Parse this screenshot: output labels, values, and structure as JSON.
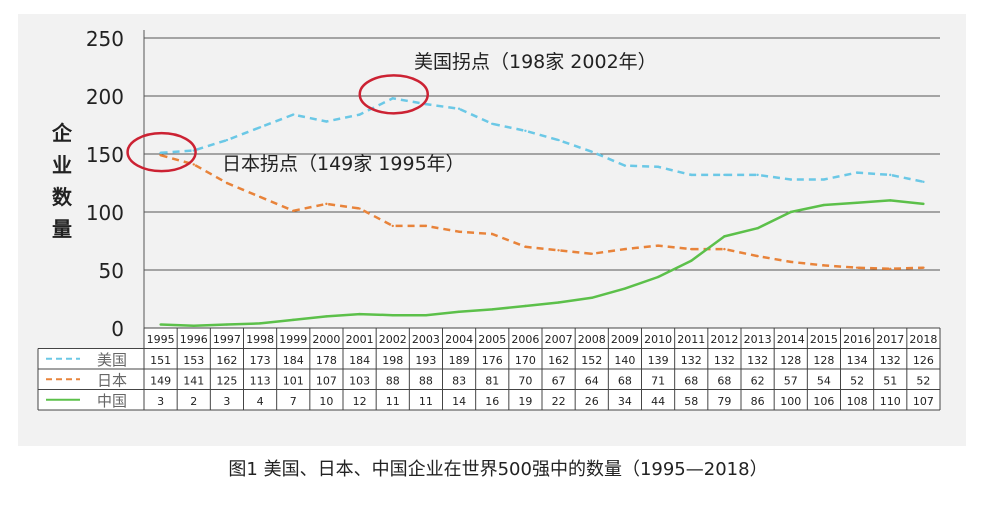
{
  "caption": "图1 美国、日本、中国企业在世界500强中的数量（1995—2018）",
  "chart_data": {
    "type": "line",
    "ylabel": "企业数量",
    "ylim": [
      0,
      250
    ],
    "yticks": [
      0,
      50,
      100,
      150,
      200,
      250
    ],
    "grid": true,
    "x": [
      "1995",
      "1996",
      "1997",
      "1998",
      "1999",
      "2000",
      "2001",
      "2002",
      "2003",
      "2004",
      "2005",
      "2006",
      "2007",
      "2008",
      "2009",
      "2010",
      "2011",
      "2012",
      "2013",
      "2014",
      "2015",
      "2016",
      "2017",
      "2018"
    ],
    "series": [
      {
        "name": "美国",
        "color": "#6bc8e6",
        "dash": "dashed",
        "values": [
          151,
          153,
          162,
          173,
          184,
          178,
          184,
          198,
          193,
          189,
          176,
          170,
          162,
          152,
          140,
          139,
          132,
          132,
          132,
          128,
          128,
          134,
          132,
          126
        ]
      },
      {
        "name": "日本",
        "color": "#e8833a",
        "dash": "dashed",
        "values": [
          149,
          141,
          125,
          113,
          101,
          107,
          103,
          88,
          88,
          83,
          81,
          70,
          67,
          64,
          68,
          71,
          68,
          68,
          62,
          57,
          54,
          52,
          51,
          52
        ]
      },
      {
        "name": "中国",
        "color": "#5cc04a",
        "dash": "solid",
        "values": [
          3,
          2,
          3,
          4,
          7,
          10,
          12,
          11,
          11,
          14,
          16,
          19,
          22,
          26,
          34,
          44,
          58,
          79,
          86,
          100,
          106,
          108,
          110,
          107
        ]
      }
    ],
    "annotations": [
      {
        "text": "美国拐点（198家 2002年）",
        "x": "2002",
        "y": 198,
        "series": "美国"
      },
      {
        "text": "日本拐点（149家 1995年）",
        "x": "1995",
        "y": 149,
        "series": "日本"
      }
    ],
    "highlight_color": "#cc2233",
    "table_below": true
  }
}
